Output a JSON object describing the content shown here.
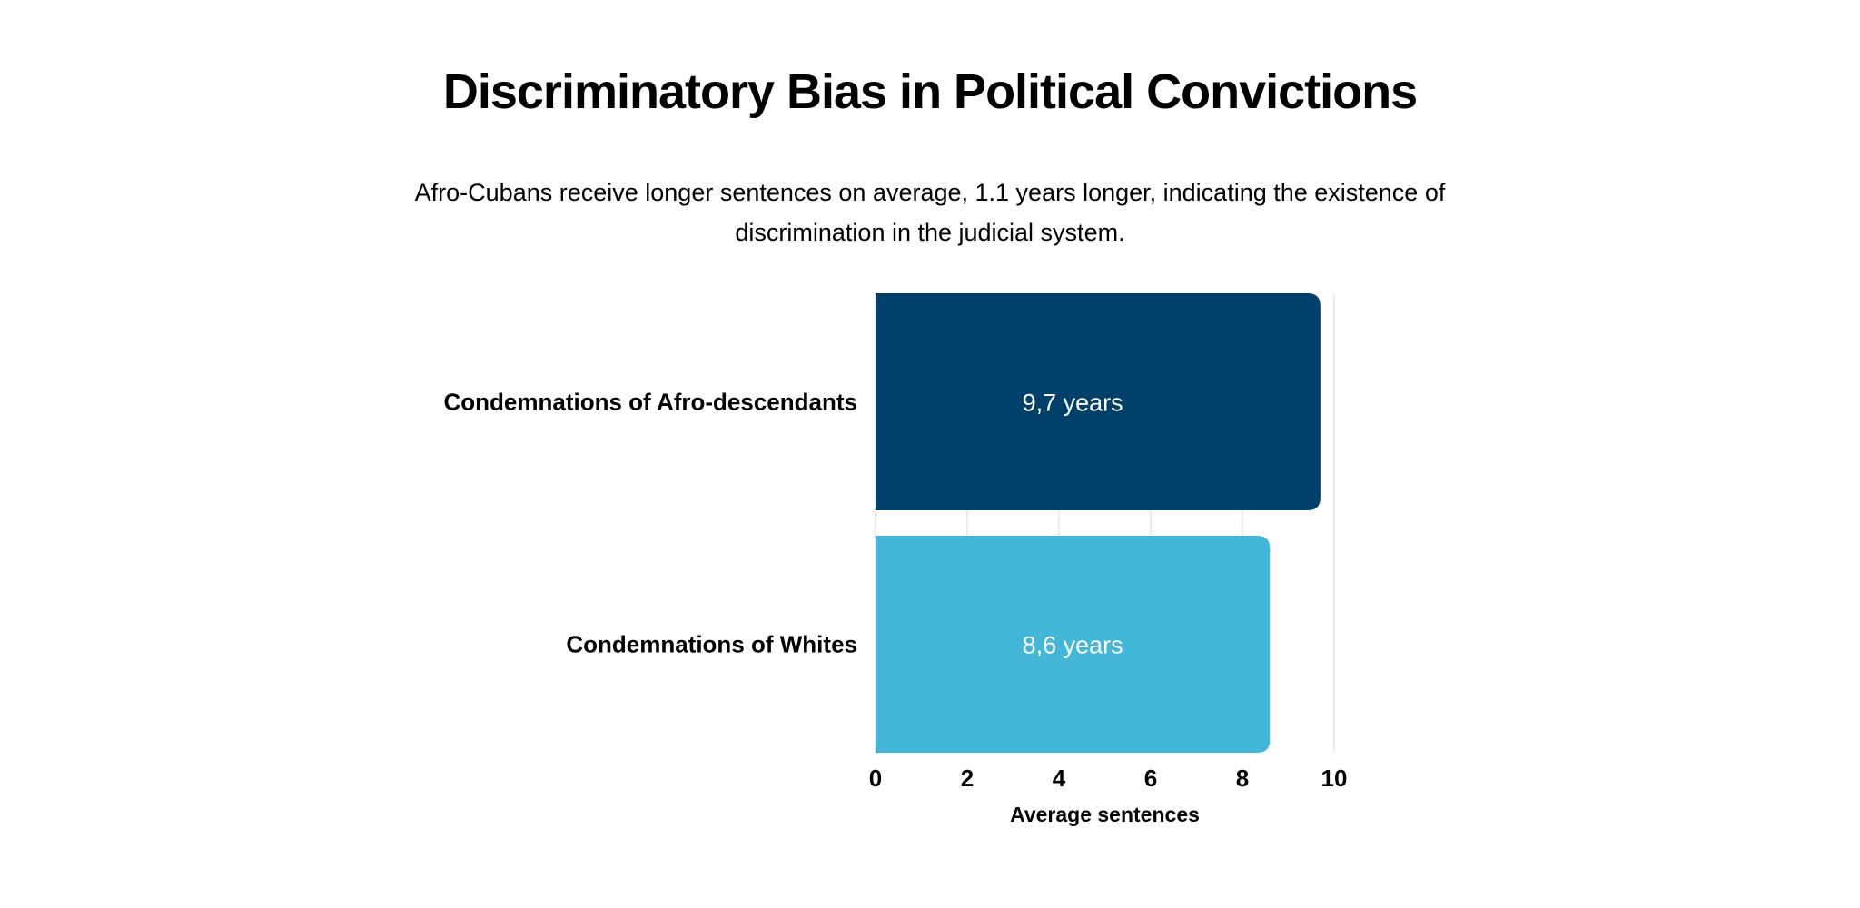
{
  "chart_data": {
    "type": "bar",
    "orientation": "horizontal",
    "title": "Discriminatory Bias in Political Convictions",
    "subtitle": "Afro-Cubans receive longer sentences on average, 1.1 years longer, indicating the existence of discrimination in the judicial system.",
    "categories": [
      "Condemnations of Afro-descendants",
      "Condemnations of Whites"
    ],
    "values": [
      9.7,
      8.6
    ],
    "data_labels": [
      "9,7 years",
      "8,6 years"
    ],
    "colors": [
      "#00416B",
      "#42B7D8"
    ],
    "xlabel": "Average sentences",
    "ylabel": "",
    "xlim": [
      0,
      10
    ],
    "x_ticks": [
      "0",
      "2",
      "4",
      "6",
      "8",
      "10"
    ],
    "grid": true,
    "legend": "none"
  }
}
